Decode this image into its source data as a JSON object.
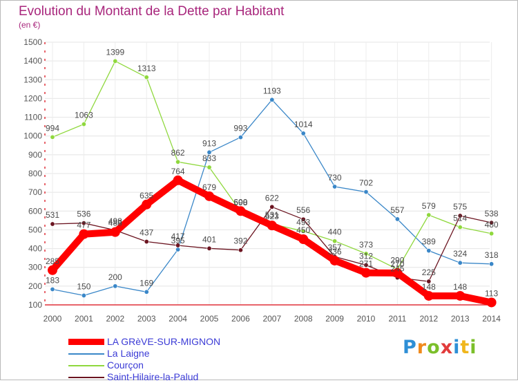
{
  "title": "Evolution du Montant de la Dette par Habitant",
  "unit": "(en €)",
  "brand": {
    "text": "Proxiti",
    "letters": [
      "P",
      "r",
      "o",
      "x",
      "i",
      "t",
      "i"
    ],
    "colors": [
      "#2e8fd6",
      "#f08a1c",
      "#7bbf2a",
      "#e23b3b",
      "#2e8fd6",
      "#f0b61c",
      "#7bbf2a"
    ]
  },
  "chart_data": {
    "type": "line",
    "title": "Evolution du Montant de la Dette par Habitant",
    "ylabel": "(en €)",
    "xlabel": "",
    "x": [
      "2000",
      "2001",
      "2002",
      "2003",
      "2004",
      "2005",
      "2006",
      "2007",
      "2008",
      "2009",
      "2010",
      "2011",
      "2012",
      "2013",
      "2014"
    ],
    "ylim": [
      100,
      1500
    ],
    "yticks": [
      100,
      200,
      300,
      400,
      500,
      600,
      700,
      800,
      900,
      1000,
      1100,
      1200,
      1300,
      1400,
      1500
    ],
    "grid": true,
    "legend_position": "bottom-left",
    "series": [
      {
        "name": "LA GRèVE-SUR-MIGNON",
        "color": "#ff0000",
        "emphasis": true,
        "values": [
          285,
          477,
          488,
          635,
          764,
          679,
          600,
          523,
          450,
          336,
          271,
          270,
          148,
          148,
          113
        ]
      },
      {
        "name": "La Laigne",
        "color": "#3a87c8",
        "emphasis": false,
        "values": [
          183,
          150,
          200,
          169,
          395,
          913,
          993,
          1193,
          1014,
          730,
          702,
          557,
          389,
          324,
          318
        ]
      },
      {
        "name": "Courçon",
        "color": "#8fd83d",
        "emphasis": false,
        "values": [
          994,
          1063,
          1399,
          1313,
          862,
          833,
          598,
          531,
          493,
          440,
          373,
          290,
          579,
          514,
          480
        ]
      },
      {
        "name": "Saint-Hilaire-la-Palud",
        "color": "#6b1420",
        "emphasis": false,
        "values": [
          531,
          536,
          498,
          437,
          417,
          401,
          392,
          622,
          556,
          357,
          312,
          245,
          225,
          575,
          538
        ]
      }
    ]
  }
}
